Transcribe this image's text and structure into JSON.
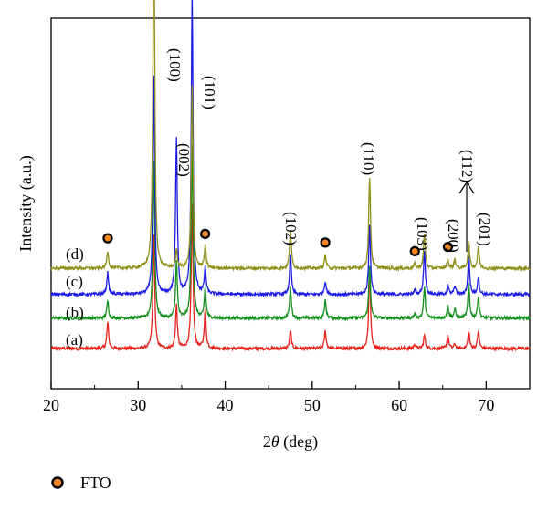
{
  "chart_data": {
    "type": "line",
    "title": "",
    "xlabel_main": "2",
    "xlabel_theta": "θ",
    "xlabel_unit": " (deg)",
    "ylabel": "Intensity (a.u.)",
    "xlim": [
      20,
      75
    ],
    "xticks": [
      20,
      30,
      40,
      50,
      60,
      70
    ],
    "grid": false,
    "legend": {
      "marker": "filled-circle",
      "label": "FTO",
      "placement": "bottom-left"
    },
    "peaks": [
      {
        "x": 26.5,
        "a": 0.6,
        "b": 0.4,
        "c": 0.5,
        "d": 0.4
      },
      {
        "x": 31.8,
        "a": 2.6,
        "b": 3.6,
        "c": 5.0,
        "d": 8.5
      },
      {
        "x": 34.4,
        "a": 1.0,
        "b": 1.3,
        "c": 3.6,
        "d": 0.4
      },
      {
        "x": 36.2,
        "a": 3.3,
        "b": 4.0,
        "c": 7.0,
        "d": 4.2
      },
      {
        "x": 37.7,
        "a": 0.9,
        "b": 0.7,
        "c": 0.6,
        "d": 0.5
      },
      {
        "x": 47.5,
        "a": 0.4,
        "b": 0.7,
        "c": 0.9,
        "d": 0.9
      },
      {
        "x": 51.5,
        "a": 0.4,
        "b": 0.4,
        "c": 0.3,
        "d": 0.3
      },
      {
        "x": 56.6,
        "a": 1.8,
        "b": 1.2,
        "c": 1.6,
        "d": 2.1
      },
      {
        "x": 61.8,
        "a": 0.1,
        "b": 0.1,
        "c": 0.1,
        "d": 0.1
      },
      {
        "x": 62.9,
        "a": 0.3,
        "b": 0.7,
        "c": 1.0,
        "d": 0.8
      },
      {
        "x": 65.6,
        "a": 0.3,
        "b": 0.3,
        "c": 0.2,
        "d": 0.2
      },
      {
        "x": 66.4,
        "a": 0.1,
        "b": 0.2,
        "c": 0.2,
        "d": 0.2
      },
      {
        "x": 68.0,
        "a": 0.4,
        "b": 0.8,
        "c": 0.9,
        "d": 0.6
      },
      {
        "x": 69.1,
        "a": 0.4,
        "b": 0.5,
        "c": 0.4,
        "d": 0.5
      }
    ],
    "series": [
      {
        "name": "(a)",
        "color": "#e8221b",
        "baseline": 0.0
      },
      {
        "name": "(b)",
        "color": "#12901c",
        "baseline": 0.7
      },
      {
        "name": "(c)",
        "color": "#1b1be6",
        "baseline": 1.25
      },
      {
        "name": "(d)",
        "color": "#8f8f1a",
        "baseline": 1.85
      }
    ],
    "peak_labels": [
      {
        "text": "(100)",
        "x": 31.8
      },
      {
        "text": "(101)",
        "x": 36.2
      },
      {
        "text": "(002)",
        "x": 34.4
      },
      {
        "text": "(102)",
        "x": 47.5
      },
      {
        "text": "(110)",
        "x": 56.6
      },
      {
        "text": "(103)",
        "x": 62.9
      },
      {
        "text": "(200)",
        "x": 66.4
      },
      {
        "text": "(112)",
        "x": 68.0
      },
      {
        "text": "(201)",
        "x": 69.1
      }
    ],
    "fto_markers": [
      26.5,
      37.7,
      51.5,
      61.8,
      65.6
    ]
  }
}
